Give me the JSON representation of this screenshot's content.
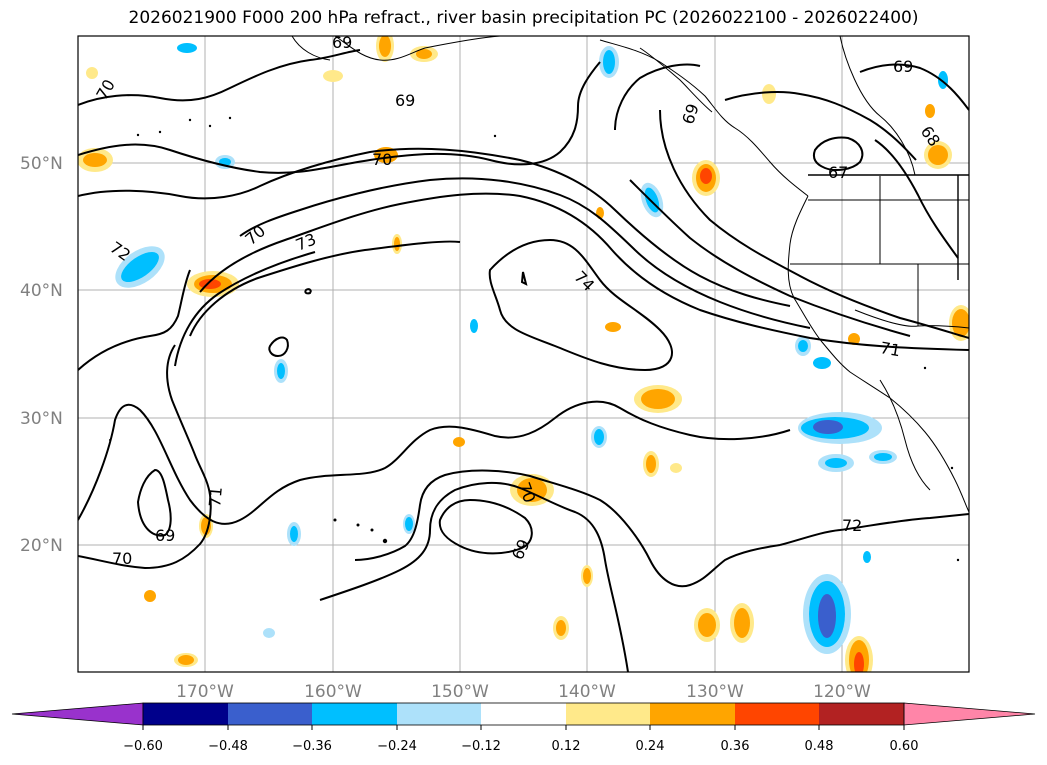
{
  "title": "2026021900 F000 200 hPa refract., river basin precipitation PC (2026022100 - 2026022400)",
  "lat_labels": [
    "50°N",
    "40°N",
    "30°N",
    "20°N"
  ],
  "lon_labels": [
    "170°W",
    "160°W",
    "150°W",
    "140°W",
    "130°W",
    "120°W"
  ],
  "colorbar": {
    "ticks": [
      "−0.60",
      "−0.48",
      "−0.36",
      "−0.24",
      "−0.12",
      "0.12",
      "0.24",
      "0.36",
      "0.48",
      "0.60"
    ],
    "colors": [
      "#9932CC",
      "#00008B",
      "#3A5FCD",
      "#00BFFF",
      "#ADE1FA",
      "#FFFFFF",
      "#FFE98A",
      "#FFA500",
      "#FF4500",
      "#B22222",
      "#FF85A8"
    ]
  },
  "contour_labels": [
    "70",
    "69",
    "69",
    "70",
    "72",
    "70",
    "73",
    "74",
    "69",
    "67",
    "68",
    "69",
    "71",
    "70",
    "69",
    "71",
    "72",
    "69",
    "70"
  ]
}
